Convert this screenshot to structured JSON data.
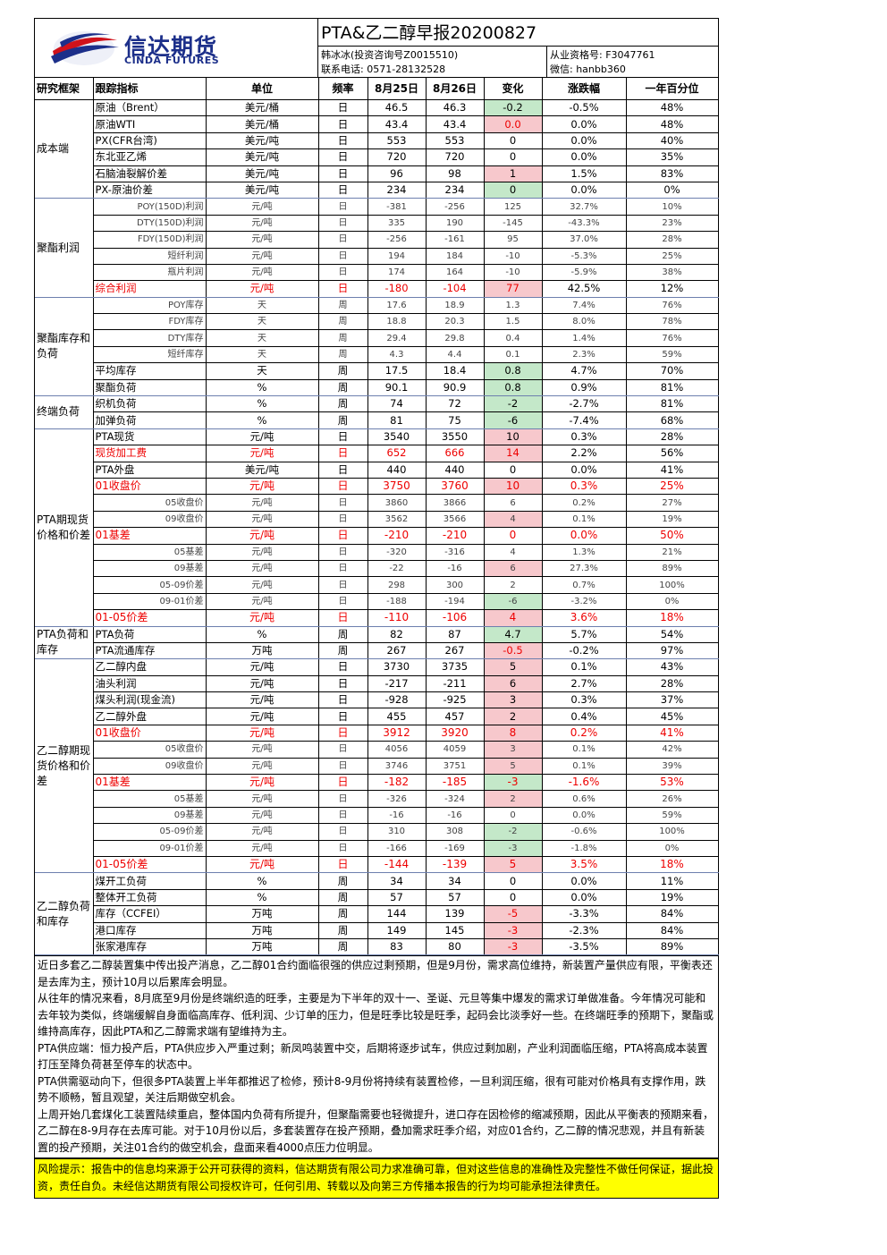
{
  "header": {
    "company_cn": "信达期货",
    "company_en": "CINDA FUTURES",
    "title": "PTA&乙二醇早报20200827",
    "analyst": "韩冰冰(投资咨询号Z0015510)",
    "license": "从业资格号: F3047761",
    "phone": "联系电话: 0571-28132528",
    "wechat": "微信: hanbb360"
  },
  "columns": [
    "研究框架",
    "跟踪指标",
    "单位",
    "频率",
    "8月25日",
    "8月26日",
    "变化",
    "涨跌幅",
    "一年百分位"
  ],
  "groups": [
    {
      "name": "成本端",
      "rows": [
        {
          "ind": "原油（Brent）",
          "unit": "美元/桶",
          "freq": "日",
          "d1": "46.5",
          "d2": "46.3",
          "chg": "-0.2",
          "pct": "-0.5%",
          "pctl": "48%",
          "hl": "dn"
        },
        {
          "ind": "原油WTI",
          "unit": "美元/桶",
          "freq": "日",
          "d1": "43.4",
          "d2": "43.4",
          "chg": "0.0",
          "pct": "0.0%",
          "pctl": "48%",
          "hl": "up",
          "chgred": true
        },
        {
          "ind": "PX(CFR台湾)",
          "unit": "美元/吨",
          "freq": "日",
          "d1": "553",
          "d2": "553",
          "chg": "0",
          "pct": "0.0%",
          "pctl": "40%"
        },
        {
          "ind": "东北亚乙烯",
          "unit": "美元/吨",
          "freq": "日",
          "d1": "720",
          "d2": "720",
          "chg": "0",
          "pct": "0.0%",
          "pctl": "35%"
        },
        {
          "ind": "石脑油裂解价差",
          "unit": "美元/吨",
          "freq": "日",
          "d1": "96",
          "d2": "98",
          "chg": "1",
          "pct": "1.5%",
          "pctl": "83%",
          "hl": "up"
        },
        {
          "ind": "PX-原油价差",
          "unit": "美元/吨",
          "freq": "日",
          "d1": "234",
          "d2": "234",
          "chg": "0",
          "pct": "0.0%",
          "pctl": "0%",
          "hl": "dn"
        }
      ]
    },
    {
      "name": "聚酯利润",
      "rows": [
        {
          "ind": "POY(150D)利润",
          "unit": "元/吨",
          "freq": "日",
          "d1": "-381",
          "d2": "-256",
          "chg": "125",
          "pct": "32.7%",
          "pctl": "10%",
          "style": "small"
        },
        {
          "ind": "DTY(150D)利润",
          "unit": "元/吨",
          "freq": "日",
          "d1": "335",
          "d2": "190",
          "chg": "-145",
          "pct": "-43.3%",
          "pctl": "23%",
          "style": "small"
        },
        {
          "ind": "FDY(150D)利润",
          "unit": "元/吨",
          "freq": "日",
          "d1": "-256",
          "d2": "-161",
          "chg": "95",
          "pct": "37.0%",
          "pctl": "28%",
          "style": "small"
        },
        {
          "ind": "短纤利润",
          "unit": "元/吨",
          "freq": "日",
          "d1": "194",
          "d2": "184",
          "chg": "-10",
          "pct": "-5.3%",
          "pctl": "25%",
          "style": "small"
        },
        {
          "ind": "瓶片利润",
          "unit": "元/吨",
          "freq": "日",
          "d1": "174",
          "d2": "164",
          "chg": "-10",
          "pct": "-5.9%",
          "pctl": "38%",
          "style": "small"
        },
        {
          "ind": "综合利润",
          "unit": "元/吨",
          "freq": "日",
          "d1": "-180",
          "d2": "-104",
          "chg": "77",
          "pct": "42.5%",
          "pctl": "12%",
          "hl": "up",
          "style": "redind"
        }
      ]
    },
    {
      "name": "聚酯库存和负荷",
      "rows": [
        {
          "ind": "POY库存",
          "unit": "天",
          "freq": "周",
          "d1": "17.6",
          "d2": "18.9",
          "chg": "1.3",
          "pct": "7.4%",
          "pctl": "76%",
          "style": "small"
        },
        {
          "ind": "FDY库存",
          "unit": "天",
          "freq": "周",
          "d1": "18.8",
          "d2": "20.3",
          "chg": "1.5",
          "pct": "8.0%",
          "pctl": "78%",
          "style": "small"
        },
        {
          "ind": "DTY库存",
          "unit": "天",
          "freq": "周",
          "d1": "29.4",
          "d2": "29.8",
          "chg": "0.4",
          "pct": "1.4%",
          "pctl": "76%",
          "style": "small"
        },
        {
          "ind": "短纤库存",
          "unit": "天",
          "freq": "周",
          "d1": "4.3",
          "d2": "4.4",
          "chg": "0.1",
          "pct": "2.3%",
          "pctl": "59%",
          "style": "small"
        },
        {
          "ind": "平均库存",
          "unit": "天",
          "freq": "周",
          "d1": "17.5",
          "d2": "18.4",
          "chg": "0.8",
          "pct": "4.7%",
          "pctl": "70%",
          "hl": "dn"
        },
        {
          "ind": "聚酯负荷",
          "unit": "%",
          "freq": "周",
          "d1": "90.1",
          "d2": "90.9",
          "chg": "0.8",
          "pct": "0.9%",
          "pctl": "81%",
          "hl": "dn"
        }
      ]
    },
    {
      "name": "终端负荷",
      "rows": [
        {
          "ind": "织机负荷",
          "unit": "%",
          "freq": "周",
          "d1": "74",
          "d2": "72",
          "chg": "-2",
          "pct": "-2.7%",
          "pctl": "81%",
          "hl": "dn"
        },
        {
          "ind": "加弹负荷",
          "unit": "%",
          "freq": "周",
          "d1": "81",
          "d2": "75",
          "chg": "-6",
          "pct": "-7.4%",
          "pctl": "68%",
          "hl": "dn"
        }
      ]
    },
    {
      "name": "PTA期现货价格和价差",
      "rows": [
        {
          "ind": "PTA现货",
          "unit": "元/吨",
          "freq": "日",
          "d1": "3540",
          "d2": "3550",
          "chg": "10",
          "pct": "0.3%",
          "pctl": "28%",
          "hl": "up"
        },
        {
          "ind": "现货加工费",
          "unit": "元/吨",
          "freq": "日",
          "d1": "652",
          "d2": "666",
          "chg": "14",
          "pct": "2.2%",
          "pctl": "56%",
          "hl": "up",
          "style": "redind"
        },
        {
          "ind": "PTA外盘",
          "unit": "美元/吨",
          "freq": "日",
          "d1": "440",
          "d2": "440",
          "chg": "0",
          "pct": "0.0%",
          "pctl": "41%"
        },
        {
          "ind": "01收盘价",
          "unit": "元/吨",
          "freq": "日",
          "d1": "3750",
          "d2": "3760",
          "chg": "10",
          "pct": "0.3%",
          "pctl": "25%",
          "hl": "up",
          "style": "red"
        },
        {
          "ind": "05收盘价",
          "unit": "元/吨",
          "freq": "日",
          "d1": "3860",
          "d2": "3866",
          "chg": "6",
          "pct": "0.2%",
          "pctl": "27%",
          "style": "small"
        },
        {
          "ind": "09收盘价",
          "unit": "元/吨",
          "freq": "日",
          "d1": "3562",
          "d2": "3566",
          "chg": "4",
          "pct": "0.1%",
          "pctl": "19%",
          "hl": "up",
          "style": "small"
        },
        {
          "ind": "01基差",
          "unit": "元/吨",
          "freq": "日",
          "d1": "-210",
          "d2": "-210",
          "chg": "0",
          "pct": "0.0%",
          "pctl": "50%",
          "style": "red"
        },
        {
          "ind": "05基差",
          "unit": "元/吨",
          "freq": "日",
          "d1": "-320",
          "d2": "-316",
          "chg": "4",
          "pct": "1.3%",
          "pctl": "21%",
          "style": "small"
        },
        {
          "ind": "09基差",
          "unit": "元/吨",
          "freq": "日",
          "d1": "-22",
          "d2": "-16",
          "chg": "6",
          "pct": "27.3%",
          "pctl": "89%",
          "hl": "up",
          "style": "small"
        },
        {
          "ind": "05-09价差",
          "unit": "元/吨",
          "freq": "日",
          "d1": "298",
          "d2": "300",
          "chg": "2",
          "pct": "0.7%",
          "pctl": "100%",
          "style": "small"
        },
        {
          "ind": "09-01价差",
          "unit": "元/吨",
          "freq": "日",
          "d1": "-188",
          "d2": "-194",
          "chg": "-6",
          "pct": "-3.2%",
          "pctl": "0%",
          "hl": "dn",
          "style": "small"
        },
        {
          "ind": "01-05价差",
          "unit": "元/吨",
          "freq": "日",
          "d1": "-110",
          "d2": "-106",
          "chg": "4",
          "pct": "3.6%",
          "pctl": "18%",
          "hl": "up",
          "style": "red"
        }
      ]
    },
    {
      "name": "PTA负荷和库存",
      "rows": [
        {
          "ind": "PTA负荷",
          "unit": "%",
          "freq": "周",
          "d1": "82",
          "d2": "87",
          "chg": "4.7",
          "pct": "5.7%",
          "pctl": "54%",
          "hl": "dn"
        },
        {
          "ind": "PTA流通库存",
          "unit": "万吨",
          "freq": "周",
          "d1": "267",
          "d2": "267",
          "chg": "-0.5",
          "pct": "-0.2%",
          "pctl": "97%",
          "hl": "up",
          "chgred": true
        }
      ]
    },
    {
      "name": "乙二醇期现货价格和价差",
      "rows": [
        {
          "ind": "乙二醇内盘",
          "unit": "元/吨",
          "freq": "日",
          "d1": "3730",
          "d2": "3735",
          "chg": "5",
          "pct": "0.1%",
          "pctl": "43%",
          "hl": "up"
        },
        {
          "ind": "油头利润",
          "unit": "元/吨",
          "freq": "日",
          "d1": "-217",
          "d2": "-211",
          "chg": "6",
          "pct": "2.7%",
          "pctl": "28%",
          "hl": "up"
        },
        {
          "ind": "煤头利润(现金流)",
          "unit": "元/吨",
          "freq": "日",
          "d1": "-928",
          "d2": "-925",
          "chg": "3",
          "pct": "0.3%",
          "pctl": "37%",
          "hl": "up"
        },
        {
          "ind": "乙二醇外盘",
          "unit": "元/吨",
          "freq": "日",
          "d1": "455",
          "d2": "457",
          "chg": "2",
          "pct": "0.4%",
          "pctl": "45%",
          "hl": "up"
        },
        {
          "ind": "01收盘价",
          "unit": "元/吨",
          "freq": "日",
          "d1": "3912",
          "d2": "3920",
          "chg": "8",
          "pct": "0.2%",
          "pctl": "41%",
          "hl": "up",
          "style": "red"
        },
        {
          "ind": "05收盘价",
          "unit": "元/吨",
          "freq": "日",
          "d1": "4056",
          "d2": "4059",
          "chg": "3",
          "pct": "0.1%",
          "pctl": "42%",
          "hl": "up",
          "style": "small"
        },
        {
          "ind": "09收盘价",
          "unit": "元/吨",
          "freq": "日",
          "d1": "3746",
          "d2": "3751",
          "chg": "5",
          "pct": "0.1%",
          "pctl": "39%",
          "hl": "up",
          "style": "small"
        },
        {
          "ind": "01基差",
          "unit": "元/吨",
          "freq": "日",
          "d1": "-182",
          "d2": "-185",
          "chg": "-3",
          "pct": "-1.6%",
          "pctl": "53%",
          "hl": "dn",
          "style": "red"
        },
        {
          "ind": "05基差",
          "unit": "元/吨",
          "freq": "日",
          "d1": "-326",
          "d2": "-324",
          "chg": "2",
          "pct": "0.6%",
          "pctl": "26%",
          "hl": "up",
          "style": "small"
        },
        {
          "ind": "09基差",
          "unit": "元/吨",
          "freq": "日",
          "d1": "-16",
          "d2": "-16",
          "chg": "0",
          "pct": "0.0%",
          "pctl": "59%",
          "style": "small"
        },
        {
          "ind": "05-09价差",
          "unit": "元/吨",
          "freq": "日",
          "d1": "310",
          "d2": "308",
          "chg": "-2",
          "pct": "-0.6%",
          "pctl": "100%",
          "hl": "dn",
          "style": "small"
        },
        {
          "ind": "09-01价差",
          "unit": "元/吨",
          "freq": "日",
          "d1": "-166",
          "d2": "-169",
          "chg": "-3",
          "pct": "-1.8%",
          "pctl": "0%",
          "hl": "dn",
          "style": "small"
        },
        {
          "ind": "01-05价差",
          "unit": "元/吨",
          "freq": "日",
          "d1": "-144",
          "d2": "-139",
          "chg": "5",
          "pct": "3.5%",
          "pctl": "18%",
          "hl": "up",
          "style": "red"
        }
      ]
    },
    {
      "name": "乙二醇负荷和库存",
      "rows": [
        {
          "ind": "煤开工负荷",
          "unit": "%",
          "freq": "周",
          "d1": "34",
          "d2": "34",
          "chg": "0",
          "pct": "0.0%",
          "pctl": "11%"
        },
        {
          "ind": "整体开工负荷",
          "unit": "%",
          "freq": "周",
          "d1": "57",
          "d2": "57",
          "chg": "0",
          "pct": "0.0%",
          "pctl": "19%"
        },
        {
          "ind": "库存（CCFEI）",
          "unit": "万吨",
          "freq": "周",
          "d1": "144",
          "d2": "139",
          "chg": "-5",
          "pct": "-3.3%",
          "pctl": "84%",
          "hl": "up",
          "chgred": true
        },
        {
          "ind": "港口库存",
          "unit": "万吨",
          "freq": "周",
          "d1": "149",
          "d2": "145",
          "chg": "-3",
          "pct": "-2.3%",
          "pctl": "84%",
          "hl": "up",
          "chgred": true
        },
        {
          "ind": "张家港库存",
          "unit": "万吨",
          "freq": "周",
          "d1": "83",
          "d2": "80",
          "chg": "-3",
          "pct": "-3.5%",
          "pctl": "89%",
          "hl": "up",
          "chgred": true
        }
      ]
    }
  ],
  "summary": [
    "近日多套乙二醇装置集中传出投产消息，乙二醇01合约面临很强的供应过剩预期，但是9月份，需求高位维持，新装置产量供应有限，平衡表还是去库为主，预计10月以后累库会明显。",
    "从往年的情况来看，8月底至9月份是终端织造的旺季，主要是为下半年的双十一、圣诞、元旦等集中爆发的需求订单做准备。今年情况可能和去年较为类似，终端缓解自身面临高库存、低利润、少订单的压力，但是旺季比较是旺季，起码会比淡季好一些。在终端旺季的预期下，聚酯或维持高库存，因此PTA和乙二醇需求端有望维持为主。",
    "PTA供应端：恒力投产后，PTA供应步入严重过剩；新凤鸣装置中交，后期将逐步试车，供应过剩加剧，产业利润面临压缩，PTA将高成本装置打压至降负荷甚至停车的状态中。",
    "PTA供需驱动向下，但很多PTA装置上半年都推迟了检修，预计8-9月份将持续有装置检修，一旦利润压缩，很有可能对价格具有支撑作用，跌势不顺畅，暂且观望，关注后期做空机会。",
    "上周开始几套煤化工装置陆续重启，整体国内负荷有所提升，但聚酯需要也轻微提升，进口存在因检修的缩减预期，因此从平衡表的预期来看，乙二醇在8-9月存在去库可能。对于10月份以后，多套装置存在投产预期，叠加需求旺季介绍，对应01合约，乙二醇的情况悲观，并且有新装置的投产预期，关注01合约的做空机会，盘面来看4000点压力位明显。"
  ],
  "risk": "风险提示：报告中的信息均来源于公开可获得的资料，信达期货有限公司力求准确可靠，但对这些信息的准确性及完整性不做任何保证，据此投资，责任自负。未经信达期货有限公司授权许可，任何引用、转载以及向第三方传播本报告的行为均可能承担法律责任。",
  "colors": {
    "up": "#f7c8cc",
    "down": "#c4e8c9",
    "red_text": "#e00000",
    "brand": "#1c2f8a",
    "risk_bg": "#ffff00"
  }
}
